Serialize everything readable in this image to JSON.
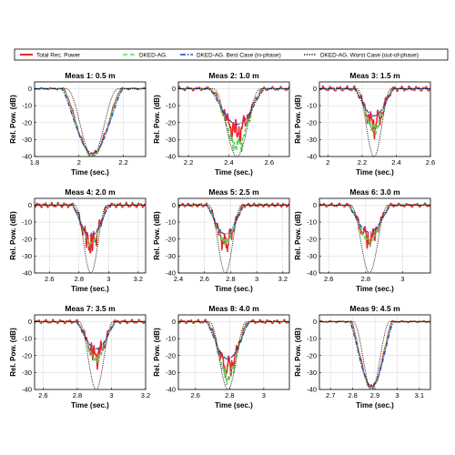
{
  "legend": {
    "placement": "top",
    "entries": [
      {
        "label": "Total Rec. Power",
        "color": "#e8262a",
        "style": "solid"
      },
      {
        "label": "DKED-AG.",
        "color": "#5dd35d",
        "style": "dashed"
      },
      {
        "label": "DKED-AG. Best Case (in-phase)",
        "color": "#1f3fbf",
        "style": "dashdot"
      },
      {
        "label": "DKED-AG. Worst Case (out-of-phase)",
        "color": "#000000",
        "style": "dotted"
      }
    ]
  },
  "chart_data": [
    {
      "type": "line",
      "title": "Meas 1: 0.5 m",
      "xlabel": "Time (sec.)",
      "ylabel": "Rel. Pow. (dB)",
      "xlim": [
        1.8,
        2.3
      ],
      "ylim": [
        -40,
        4
      ],
      "xticks": [
        "1.8",
        "2",
        "2.2"
      ],
      "yticks": [
        "0",
        "-10",
        "-20",
        "-30",
        "-40"
      ],
      "grid": true,
      "center": 2.06,
      "width": 0.14,
      "best_depth": -38,
      "spread": 2,
      "noise": 1.2,
      "series": [
        {
          "name": "Total Rec. Power",
          "min": -40
        },
        {
          "name": "DKED-AG.",
          "min": -40
        },
        {
          "name": "DKED-AG. Best Case (in-phase)",
          "min": -38
        },
        {
          "name": "DKED-AG. Worst Case (out-of-phase)",
          "min": -40
        }
      ]
    },
    {
      "type": "line",
      "title": "Meas 2: 1.0 m",
      "xlabel": "Time (sec.)",
      "ylabel": "Rel. Pow. (dB)",
      "xlim": [
        2.15,
        2.7
      ],
      "ylim": [
        -40,
        4
      ],
      "xticks": [
        "2.2",
        "2.4",
        "2.6"
      ],
      "yticks": [
        "0",
        "-10",
        "-20",
        "-30",
        "-40"
      ],
      "grid": true,
      "center": 2.44,
      "width": 0.14,
      "best_depth": -21,
      "spread": 10,
      "noise": 3,
      "series": [
        {
          "name": "Total Rec. Power",
          "min": -34
        },
        {
          "name": "DKED-AG.",
          "min": -40
        },
        {
          "name": "DKED-AG. Best Case (in-phase)",
          "min": -21
        },
        {
          "name": "DKED-AG. Worst Case (out-of-phase)",
          "min": -40
        }
      ]
    },
    {
      "type": "line",
      "title": "Meas 3: 1.5 m",
      "xlabel": "Time (sec.)",
      "ylabel": "Rel. Pow. (dB)",
      "xlim": [
        1.95,
        2.6
      ],
      "ylim": [
        -40,
        4
      ],
      "xticks": [
        "2",
        "2.2",
        "2.4",
        "2.6"
      ],
      "yticks": [
        "0",
        "-10",
        "-20",
        "-30",
        "-40"
      ],
      "grid": true,
      "center": 2.27,
      "width": 0.12,
      "best_depth": -16,
      "spread": 7,
      "noise": 4,
      "series": [
        {
          "name": "Total Rec. Power",
          "min": -30
        },
        {
          "name": "DKED-AG.",
          "min": -28
        },
        {
          "name": "DKED-AG. Best Case (in-phase)",
          "min": -16
        },
        {
          "name": "DKED-AG. Worst Case (out-of-phase)",
          "min": -40
        }
      ]
    },
    {
      "type": "line",
      "title": "Meas 4: 2.0 m",
      "xlabel": "Time (sec.)",
      "ylabel": "Rel. Pow. (dB)",
      "xlim": [
        2.5,
        3.25
      ],
      "ylim": [
        -40,
        4
      ],
      "xticks": [
        "2.6",
        "2.8",
        "3",
        "3.2"
      ],
      "yticks": [
        "0",
        "-10",
        "-20",
        "-30",
        "-40"
      ],
      "grid": true,
      "center": 2.88,
      "width": 0.13,
      "best_depth": -18,
      "spread": 5,
      "noise": 4,
      "series": [
        {
          "name": "Total Rec. Power",
          "min": -32
        },
        {
          "name": "DKED-AG.",
          "min": -25
        },
        {
          "name": "DKED-AG. Best Case (in-phase)",
          "min": -18
        },
        {
          "name": "DKED-AG. Worst Case (out-of-phase)",
          "min": -40
        }
      ]
    },
    {
      "type": "line",
      "title": "Meas 5: 2.5 m",
      "xlabel": "Time (sec.)",
      "ylabel": "Rel. Pow. (dB)",
      "xlim": [
        2.4,
        3.25
      ],
      "ylim": [
        -40,
        4
      ],
      "xticks": [
        "2.4",
        "2.6",
        "2.8",
        "3",
        "3.2"
      ],
      "yticks": [
        "0",
        "-10",
        "-20",
        "-30",
        "-40"
      ],
      "grid": true,
      "center": 2.76,
      "width": 0.15,
      "best_depth": -17,
      "spread": 4,
      "noise": 3,
      "series": [
        {
          "name": "Total Rec. Power",
          "min": -30
        },
        {
          "name": "DKED-AG.",
          "min": -24
        },
        {
          "name": "DKED-AG. Best Case (in-phase)",
          "min": -17
        },
        {
          "name": "DKED-AG. Worst Case (out-of-phase)",
          "min": -40
        }
      ]
    },
    {
      "type": "line",
      "title": "Meas 6: 3.0 m",
      "xlabel": "Time (sec.)",
      "ylabel": "Rel. Pow. (dB)",
      "xlim": [
        2.55,
        3.15
      ],
      "ylim": [
        -40,
        4
      ],
      "xticks": [
        "2.6",
        "2.8",
        "3"
      ],
      "yticks": [
        "0",
        "-10",
        "-20",
        "-30",
        "-40"
      ],
      "grid": true,
      "center": 2.82,
      "width": 0.12,
      "best_depth": -16,
      "spread": 4,
      "noise": 3,
      "series": [
        {
          "name": "Total Rec. Power",
          "min": -27
        },
        {
          "name": "DKED-AG.",
          "min": -24
        },
        {
          "name": "DKED-AG. Best Case (in-phase)",
          "min": -16
        },
        {
          "name": "DKED-AG. Worst Case (out-of-phase)",
          "min": -40
        }
      ]
    },
    {
      "type": "line",
      "title": "Meas 7: 3.5 m",
      "xlabel": "Time (sec.)",
      "ylabel": "Rel. Pow. (dB)",
      "xlim": [
        2.55,
        3.2
      ],
      "ylim": [
        -40,
        4
      ],
      "xticks": [
        "2.6",
        "2.8",
        "3",
        "3.2"
      ],
      "yticks": [
        "0",
        "-10",
        "-20",
        "-30",
        "-40"
      ],
      "grid": true,
      "center": 2.91,
      "width": 0.12,
      "best_depth": -16,
      "spread": 5,
      "noise": 3,
      "series": [
        {
          "name": "Total Rec. Power",
          "min": -28
        },
        {
          "name": "DKED-AG.",
          "min": -26
        },
        {
          "name": "DKED-AG. Best Case (in-phase)",
          "min": -16
        },
        {
          "name": "DKED-AG. Worst Case (out-of-phase)",
          "min": -40
        }
      ]
    },
    {
      "type": "line",
      "title": "Meas 8: 4.0 m",
      "xlabel": "Time (sec.)",
      "ylabel": "Rel. Pow. (dB)",
      "xlim": [
        2.5,
        3.15
      ],
      "ylim": [
        -40,
        4
      ],
      "xticks": [
        "2.6",
        "2.8",
        "3"
      ],
      "yticks": [
        "0",
        "-10",
        "-20",
        "-30",
        "-40"
      ],
      "grid": true,
      "center": 2.79,
      "width": 0.13,
      "best_depth": -22,
      "spread": 12,
      "noise": 3,
      "series": [
        {
          "name": "Total Rec. Power",
          "min": -36
        },
        {
          "name": "DKED-AG.",
          "min": -38
        },
        {
          "name": "DKED-AG. Best Case (in-phase)",
          "min": -22
        },
        {
          "name": "DKED-AG. Worst Case (out-of-phase)",
          "min": -40
        }
      ]
    },
    {
      "type": "line",
      "title": "Meas 9: 4.5 m",
      "xlabel": "Time (sec.)",
      "ylabel": "Rel. Pow. (dB)",
      "xlim": [
        2.65,
        3.15
      ],
      "ylim": [
        -40,
        4
      ],
      "xticks": [
        "2.7",
        "2.8",
        "2.9",
        "3",
        "3.1"
      ],
      "yticks": [
        "0",
        "-10",
        "-20",
        "-30",
        "-40"
      ],
      "grid": true,
      "center": 2.885,
      "width": 0.1,
      "best_depth": -38,
      "spread": 2,
      "noise": 1,
      "series": [
        {
          "name": "Total Rec. Power",
          "min": -40
        },
        {
          "name": "DKED-AG.",
          "min": -40
        },
        {
          "name": "DKED-AG. Best Case (in-phase)",
          "min": -38
        },
        {
          "name": "DKED-AG. Worst Case (out-of-phase)",
          "min": -40
        }
      ]
    }
  ]
}
